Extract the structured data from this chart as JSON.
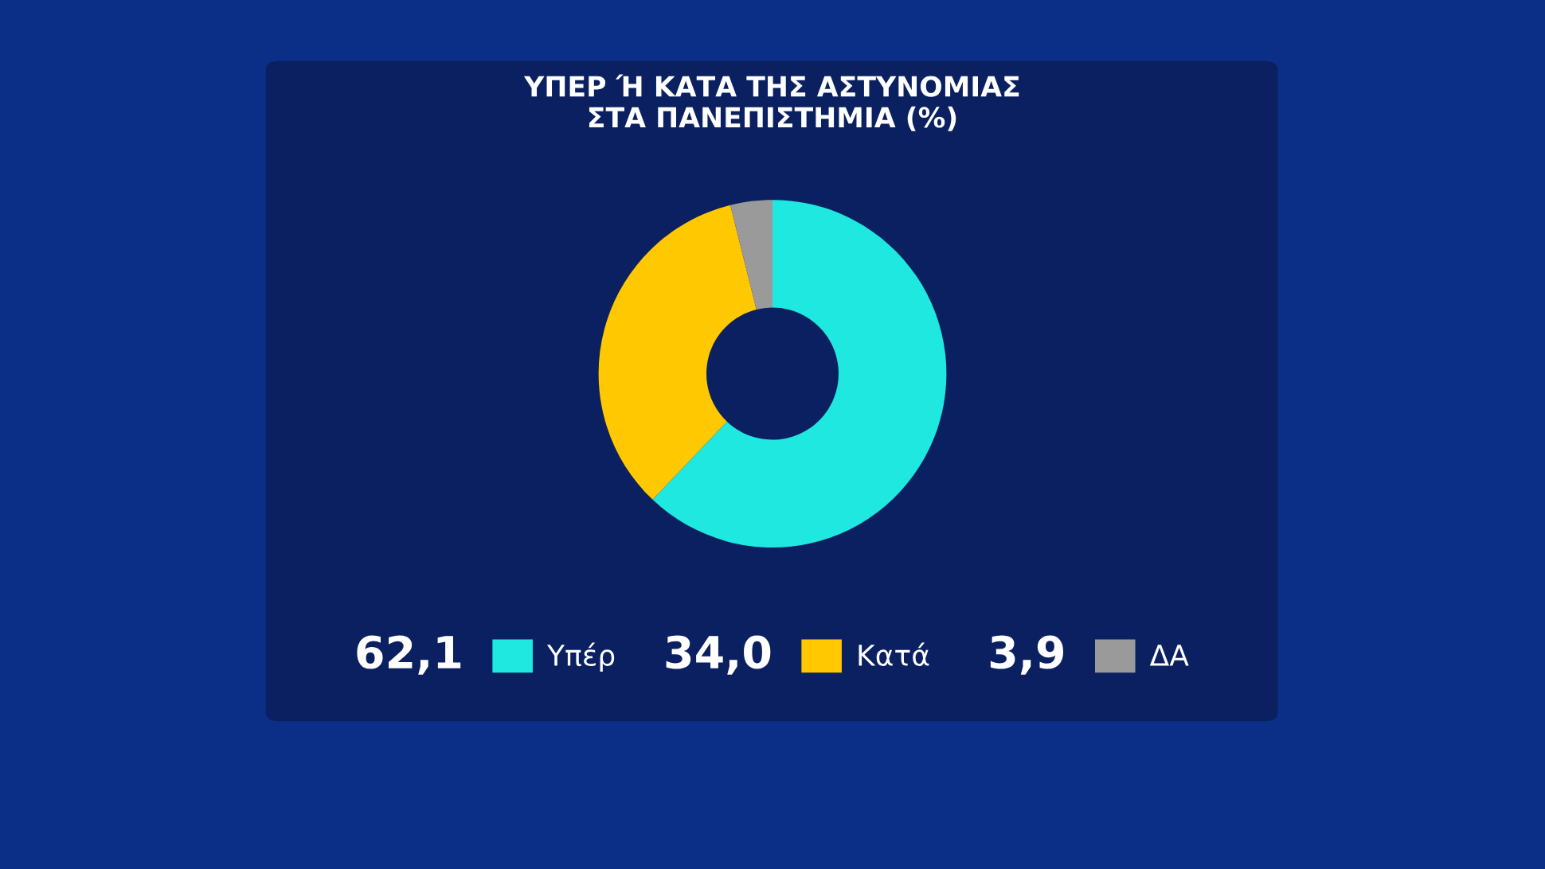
{
  "chart_data": {
    "type": "donut",
    "title": "ΥΠΕΡ Ή ΚΑΤΑ ΤΗΣ ΑΣΤΥΝΟΜΙΑΣ\nΣΤΑ ΠΑΝΕΠΙΣΤΗΜΙΑ (%)",
    "categories": [
      "Υπέρ",
      "Κατά",
      "ΔΑ"
    ],
    "values": [
      62.1,
      34.0,
      3.9
    ],
    "colors": [
      "#1ee8df",
      "#ffc800",
      "#9a9a9a"
    ],
    "value_labels": [
      "62,1",
      "34,0",
      "3,9"
    ],
    "legend": "bottom"
  }
}
